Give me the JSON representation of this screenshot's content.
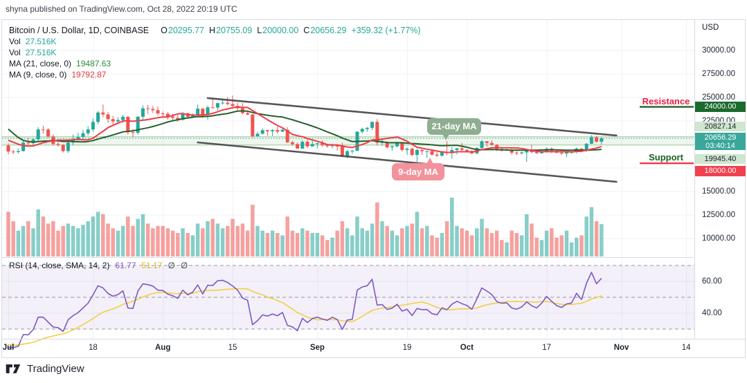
{
  "colors": {
    "up": "#26a69a",
    "down": "#ef5350",
    "ma21": "#275e2b",
    "ma9": "#ef3b44",
    "rsi": "#7e57c2",
    "rsi_sma": "#f2d040",
    "trend": "#3f3f3f",
    "level_line": "#b7d9b7",
    "level_fill": "rgba(178,214,178,0.22)",
    "last_price": "#3aa79b",
    "resistance_text": "#ef1c3f",
    "resistance_line": "#1b6323",
    "support_text": "#1b5e20",
    "support_line": "#f23645",
    "rsi_band": "rgba(126,87,194,0.09)",
    "grid": "#eef1f5",
    "border": "#d6d9e0",
    "dashed": "#94979e"
  },
  "header": {
    "attribution": "shyna published on TradingView.com, Oct 28, 2022 20:19 UTC"
  },
  "legend": {
    "title": "Bitcoin / U.S. Dollar, 1D, COINBASE",
    "ohlc": {
      "o_label": "O",
      "o": "20295.77",
      "h_label": "H",
      "h": "20755.09",
      "l_label": "L",
      "l": "20000.00",
      "c_label": "C",
      "c": "20656.29",
      "change": "+359.32 (+1.77%)"
    },
    "rows": [
      {
        "label": "Vol",
        "value": "27.516K"
      },
      {
        "label": "Vol",
        "value": "27.516K"
      },
      {
        "label": "MA (21, close, 0)",
        "value": "19487.63"
      },
      {
        "label": "MA (9, close, 0)",
        "value": "19792.87"
      }
    ]
  },
  "rsi_legend": {
    "title": "RSI (14, close, SMA, 14, 2)",
    "rsi_value": "61.77",
    "sma_value": "51.17",
    "empty1": "∅",
    "empty2": "∅"
  },
  "axis": {
    "currency": "USD",
    "badges": [
      {
        "text": "24000.00",
        "bg": "#1b6a2f",
        "fg": "#ffffff",
        "top": 147,
        "h": 15
      },
      {
        "text": "20827.14",
        "bg": "#cfe6cf",
        "fg": "#19212b",
        "top": 176,
        "h": 14
      },
      {
        "text": "20656.29",
        "sub": "03:40:14",
        "bg": "#3aa79b",
        "fg": "#ffffff",
        "top": 192,
        "h": 25
      },
      {
        "text": "19945.40",
        "bg": "#cfe6cf",
        "fg": "#19212b",
        "top": 223,
        "h": 14
      },
      {
        "text": "18000.00",
        "bg": "#ef414e",
        "fg": "#ffffff",
        "top": 240,
        "h": 15
      }
    ]
  },
  "annotations": {
    "resistance": "Resistance",
    "support": "Support",
    "ma21_callout": "21-day MA",
    "ma9_callout": "9-day MA"
  },
  "footer": {
    "brand": "TradingView"
  },
  "chart_data": {
    "type": "candlestick",
    "symbol": "Bitcoin / U.S. Dollar",
    "interval": "1D",
    "exchange": "COINBASE",
    "start_date": "2022-07-01",
    "end_date": "2022-10-28",
    "y_ticks_price": [
      {
        "label": "30000.00",
        "price": 30000
      },
      {
        "label": "27500.00",
        "price": 27500
      },
      {
        "label": "25000.00",
        "price": 25000
      },
      {
        "label": "22500.00",
        "price": 22500
      },
      {
        "label": "15000.00",
        "price": 15000
      },
      {
        "label": "12500.00",
        "price": 12500
      },
      {
        "label": "10000.00",
        "price": 10000
      }
    ],
    "y_ticks_rsi": [
      {
        "label": "60.00",
        "value": 60
      },
      {
        "label": "40.00",
        "value": 40
      }
    ],
    "x_ticks": [
      {
        "label": "Jul",
        "i": 0,
        "bold": true
      },
      {
        "label": "18",
        "i": 17,
        "bold": false
      },
      {
        "label": "Aug",
        "i": 31,
        "bold": true
      },
      {
        "label": "15",
        "i": 45,
        "bold": false
      },
      {
        "label": "Sep",
        "i": 62,
        "bold": true
      },
      {
        "label": "19",
        "i": 80,
        "bold": false
      },
      {
        "label": "Oct",
        "i": 92,
        "bold": true
      },
      {
        "label": "17",
        "i": 108,
        "bold": false
      },
      {
        "label": "Nov",
        "i": 123,
        "bold": true
      },
      {
        "label": "14",
        "i": 136,
        "bold": false
      }
    ],
    "levels": {
      "resistance": 24000,
      "support": 18000,
      "zone_top": 20827.14,
      "zone_bottom": 19945.4,
      "last_price": 20656.29,
      "countdown": "03:40:14"
    },
    "channel": {
      "upper": [
        [
          40,
          24930
        ],
        [
          122,
          20960
        ]
      ],
      "lower": [
        [
          38,
          20220
        ],
        [
          122,
          16030
        ]
      ]
    },
    "indicators": {
      "ma_fast": 9,
      "ma_slow": 21,
      "rsi_period": 14,
      "rsi_sma": 14,
      "rsi_bands": [
        70,
        50,
        30
      ]
    },
    "warmup_closes": [
      30200,
      29100,
      28400,
      26600,
      22500,
      22100,
      20400,
      20500,
      20600,
      19000,
      20600,
      20700,
      19970,
      21100,
      21230,
      21500,
      20750,
      20280,
      20100,
      20000,
      19900
    ],
    "candles": [
      [
        19900,
        20100,
        18950,
        19250
      ],
      [
        19250,
        19450,
        19000,
        19200
      ],
      [
        19200,
        19550,
        19050,
        19300
      ],
      [
        19300,
        20350,
        19250,
        20200
      ],
      [
        20200,
        20700,
        19800,
        20150
      ],
      [
        20150,
        20650,
        19900,
        20550
      ],
      [
        20550,
        21850,
        20350,
        21600
      ],
      [
        21600,
        22000,
        21150,
        21590
      ],
      [
        21590,
        21750,
        20700,
        20850
      ],
      [
        20850,
        21100,
        19900,
        20050
      ],
      [
        20050,
        20250,
        19750,
        19950
      ],
      [
        19950,
        20050,
        19150,
        19300
      ],
      [
        19300,
        20350,
        19100,
        20200
      ],
      [
        20200,
        21050,
        19900,
        20550
      ],
      [
        20550,
        21250,
        20350,
        20800
      ],
      [
        20800,
        21550,
        20550,
        21200
      ],
      [
        21200,
        21950,
        20950,
        21600
      ],
      [
        21600,
        22750,
        21350,
        22400
      ],
      [
        22400,
        23550,
        22150,
        23400
      ],
      [
        23400,
        24250,
        22900,
        23200
      ],
      [
        23200,
        23450,
        22300,
        22700
      ],
      [
        22700,
        23050,
        22100,
        22450
      ],
      [
        22450,
        22900,
        22150,
        22600
      ],
      [
        22600,
        23150,
        22300,
        22950
      ],
      [
        22950,
        23000,
        21050,
        21300
      ],
      [
        21300,
        21650,
        20750,
        21250
      ],
      [
        21250,
        23050,
        21050,
        22950
      ],
      [
        22950,
        24150,
        22550,
        23850
      ],
      [
        23850,
        24200,
        23250,
        23780
      ],
      [
        23780,
        24100,
        23350,
        23650
      ],
      [
        23650,
        24050,
        23100,
        23300
      ],
      [
        23300,
        23500,
        22850,
        23270
      ],
      [
        23270,
        23450,
        22650,
        22970
      ],
      [
        22970,
        23250,
        22500,
        22840
      ],
      [
        22840,
        23150,
        22400,
        22630
      ],
      [
        22630,
        23450,
        22550,
        23310
      ],
      [
        23310,
        23400,
        22750,
        22950
      ],
      [
        22950,
        23300,
        22800,
        23180
      ],
      [
        23180,
        24250,
        23150,
        23810
      ],
      [
        23810,
        23900,
        22850,
        23150
      ],
      [
        23150,
        24150,
        22650,
        23950
      ],
      [
        23950,
        24900,
        23850,
        23930
      ],
      [
        23930,
        24450,
        23600,
        24400
      ],
      [
        24400,
        24850,
        24250,
        24440
      ],
      [
        24440,
        25050,
        24150,
        24300
      ],
      [
        24300,
        25200,
        23800,
        24100
      ],
      [
        24100,
        24450,
        23650,
        23850
      ],
      [
        23850,
        24400,
        23200,
        23340
      ],
      [
        23340,
        23600,
        23100,
        23190
      ],
      [
        23190,
        23250,
        20750,
        20870
      ],
      [
        20870,
        21350,
        20850,
        21140
      ],
      [
        21140,
        21700,
        21050,
        21520
      ],
      [
        21520,
        21550,
        20900,
        21400
      ],
      [
        21400,
        21650,
        20900,
        21530
      ],
      [
        21530,
        21900,
        21150,
        21370
      ],
      [
        21370,
        21800,
        21300,
        21560
      ],
      [
        21560,
        21850,
        20150,
        20240
      ],
      [
        20240,
        20400,
        19850,
        20040
      ],
      [
        20040,
        20200,
        19550,
        19560
      ],
      [
        19560,
        20450,
        19550,
        20290
      ],
      [
        20290,
        20550,
        19650,
        19800
      ],
      [
        19800,
        20500,
        19800,
        20050
      ],
      [
        20050,
        20200,
        19600,
        20130
      ],
      [
        20130,
        20450,
        19750,
        19950
      ],
      [
        19950,
        20050,
        19650,
        19830
      ],
      [
        19830,
        20050,
        19600,
        19990
      ],
      [
        19990,
        20050,
        19350,
        19790
      ],
      [
        19790,
        20200,
        18650,
        18800
      ],
      [
        18800,
        19450,
        18550,
        19290
      ],
      [
        19290,
        19450,
        19000,
        19320
      ],
      [
        19320,
        21400,
        19300,
        21360
      ],
      [
        21360,
        21800,
        21150,
        21650
      ],
      [
        21650,
        21850,
        21350,
        21770
      ],
      [
        21770,
        22450,
        21550,
        22400
      ],
      [
        22400,
        22700,
        19900,
        20180
      ],
      [
        20180,
        20550,
        19850,
        20230
      ],
      [
        20230,
        20350,
        19550,
        19700
      ],
      [
        19700,
        19900,
        19350,
        19800
      ],
      [
        19800,
        20150,
        19700,
        20110
      ],
      [
        20110,
        20150,
        19250,
        19420
      ],
      [
        19420,
        19700,
        18900,
        19550
      ],
      [
        19550,
        19650,
        18750,
        18890
      ],
      [
        18890,
        19550,
        18150,
        19410
      ],
      [
        19410,
        19500,
        18900,
        19290
      ],
      [
        19290,
        19350,
        18550,
        19300
      ],
      [
        19300,
        19320,
        18800,
        18920
      ],
      [
        18920,
        19180,
        18650,
        18810
      ],
      [
        18810,
        19320,
        18700,
        19230
      ],
      [
        19230,
        20350,
        18850,
        19080
      ],
      [
        19080,
        19700,
        18500,
        19410
      ],
      [
        19410,
        19650,
        18950,
        19590
      ],
      [
        19590,
        20150,
        19150,
        19430
      ],
      [
        19430,
        19480,
        19150,
        19310
      ],
      [
        19310,
        19400,
        18950,
        19060
      ],
      [
        19060,
        19720,
        18960,
        19630
      ],
      [
        19630,
        20450,
        19500,
        20340
      ],
      [
        20340,
        20360,
        19750,
        20160
      ],
      [
        20160,
        20450,
        19870,
        19960
      ],
      [
        19960,
        20050,
        19320,
        19530
      ],
      [
        19530,
        19630,
        19250,
        19420
      ],
      [
        19420,
        19560,
        19320,
        19440
      ],
      [
        19440,
        19520,
        18900,
        19130
      ],
      [
        19130,
        19270,
        18850,
        19060
      ],
      [
        19060,
        19230,
        18950,
        19160
      ],
      [
        19160,
        19500,
        18150,
        19380
      ],
      [
        19380,
        19950,
        19100,
        19180
      ],
      [
        19180,
        19400,
        19000,
        19070
      ],
      [
        19070,
        19420,
        19010,
        19260
      ],
      [
        19260,
        19670,
        19150,
        19550
      ],
      [
        19550,
        19700,
        19100,
        19330
      ],
      [
        19330,
        19350,
        19050,
        19130
      ],
      [
        19130,
        19340,
        18900,
        19040
      ],
      [
        19040,
        19250,
        18650,
        19170
      ],
      [
        19170,
        19250,
        19020,
        19200
      ],
      [
        19200,
        19690,
        19070,
        19570
      ],
      [
        19570,
        19600,
        19170,
        19330
      ],
      [
        19330,
        20150,
        19230,
        20080
      ],
      [
        20080,
        21000,
        20050,
        20770
      ],
      [
        20770,
        20880,
        20200,
        20295.77
      ],
      [
        20295.77,
        20755.09,
        20000.0,
        20656.29
      ]
    ],
    "volumes_k": [
      38,
      30,
      22,
      26,
      30,
      24,
      40,
      34,
      28,
      30,
      22,
      26,
      28,
      26,
      24,
      27,
      30,
      34,
      38,
      36,
      28,
      24,
      22,
      26,
      34,
      26,
      32,
      36,
      28,
      24,
      26,
      26,
      24,
      22,
      20,
      24,
      20,
      18,
      28,
      24,
      30,
      32,
      28,
      24,
      26,
      32,
      26,
      28,
      22,
      44,
      26,
      22,
      20,
      22,
      20,
      18,
      34,
      22,
      20,
      24,
      22,
      20,
      20,
      18,
      14,
      16,
      22,
      30,
      24,
      18,
      34,
      24,
      22,
      28,
      46,
      30,
      26,
      22,
      18,
      24,
      26,
      28,
      38,
      24,
      26,
      18,
      16,
      20,
      30,
      50,
      26,
      24,
      22,
      18,
      24,
      32,
      24,
      20,
      22,
      14,
      12,
      22,
      20,
      18,
      36,
      28,
      16,
      14,
      22,
      24,
      16,
      18,
      22,
      12,
      16,
      18,
      34,
      42,
      30,
      27.5
    ]
  }
}
